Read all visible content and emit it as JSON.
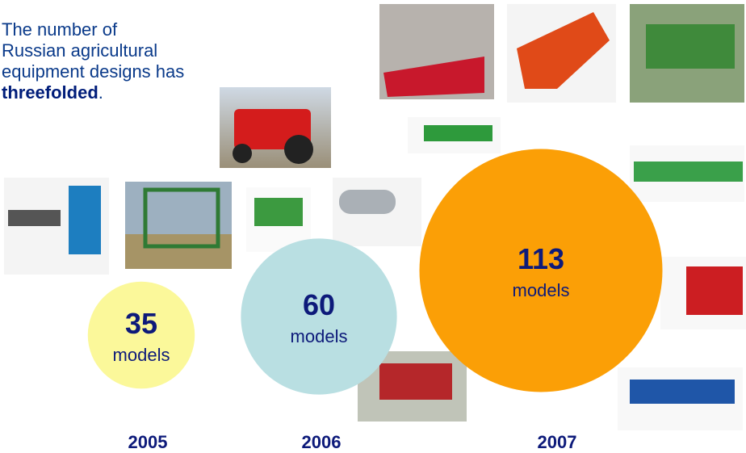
{
  "header": {
    "title": "The number of Russian agricultural equipment designs has",
    "emphasis": "threefolded",
    "end": "."
  },
  "bubbles": [
    {
      "year": "2005",
      "value": 35,
      "unit": "models",
      "color": "#fbf89a"
    },
    {
      "year": "2006",
      "value": 60,
      "unit": "models",
      "color": "#b9dfe2"
    },
    {
      "year": "2007",
      "value": 113,
      "unit": "models",
      "color": "#fb9f06"
    }
  ]
}
